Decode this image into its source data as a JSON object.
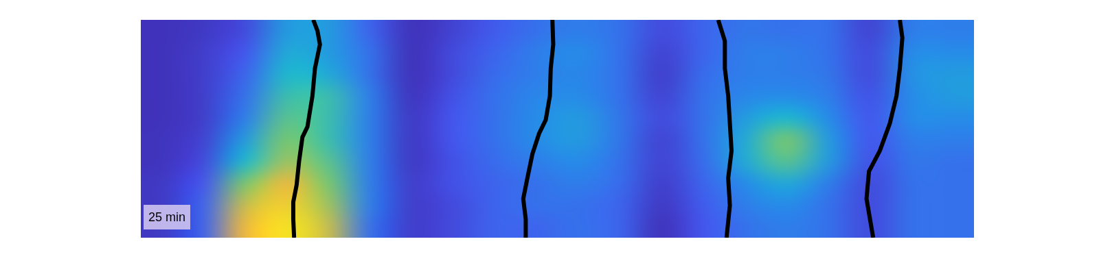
{
  "chart_data": {
    "type": "heatmap",
    "tick_labels": false,
    "xlim": [
      0,
      100
    ],
    "ylim": [
      0,
      100
    ],
    "zlim": [
      0,
      1
    ],
    "z": [
      [
        0.08,
        0.25,
        0.85,
        0.95,
        0.8,
        0.3,
        0.1,
        0.15,
        0.25,
        0.25,
        0.3,
        0.25,
        0.05,
        0.2,
        0.3,
        0.35,
        0.3,
        0.15,
        0.3,
        0.3
      ],
      [
        0.08,
        0.25,
        0.8,
        0.9,
        0.75,
        0.35,
        0.1,
        0.15,
        0.25,
        0.3,
        0.3,
        0.25,
        0.08,
        0.22,
        0.35,
        0.4,
        0.3,
        0.15,
        0.3,
        0.3
      ],
      [
        0.08,
        0.2,
        0.7,
        0.85,
        0.7,
        0.35,
        0.1,
        0.18,
        0.25,
        0.3,
        0.35,
        0.28,
        0.1,
        0.25,
        0.4,
        0.5,
        0.35,
        0.15,
        0.3,
        0.3
      ],
      [
        0.06,
        0.15,
        0.55,
        0.75,
        0.65,
        0.35,
        0.08,
        0.18,
        0.28,
        0.35,
        0.4,
        0.3,
        0.12,
        0.28,
        0.5,
        0.65,
        0.45,
        0.18,
        0.32,
        0.3
      ],
      [
        0.06,
        0.12,
        0.45,
        0.7,
        0.6,
        0.35,
        0.08,
        0.2,
        0.3,
        0.4,
        0.45,
        0.32,
        0.12,
        0.3,
        0.5,
        0.7,
        0.45,
        0.2,
        0.35,
        0.35
      ],
      [
        0.05,
        0.1,
        0.35,
        0.65,
        0.6,
        0.35,
        0.08,
        0.2,
        0.3,
        0.4,
        0.45,
        0.32,
        0.15,
        0.3,
        0.45,
        0.55,
        0.4,
        0.2,
        0.4,
        0.4
      ],
      [
        0.05,
        0.1,
        0.3,
        0.6,
        0.6,
        0.35,
        0.06,
        0.18,
        0.3,
        0.38,
        0.4,
        0.3,
        0.12,
        0.3,
        0.38,
        0.4,
        0.35,
        0.18,
        0.4,
        0.45
      ],
      [
        0.05,
        0.1,
        0.25,
        0.55,
        0.5,
        0.3,
        0.05,
        0.15,
        0.28,
        0.35,
        0.38,
        0.3,
        0.1,
        0.28,
        0.35,
        0.35,
        0.32,
        0.15,
        0.42,
        0.45
      ],
      [
        0.05,
        0.1,
        0.2,
        0.5,
        0.45,
        0.3,
        0.05,
        0.15,
        0.25,
        0.35,
        0.4,
        0.3,
        0.12,
        0.25,
        0.35,
        0.35,
        0.3,
        0.15,
        0.4,
        0.4
      ],
      [
        0.05,
        0.08,
        0.15,
        0.45,
        0.45,
        0.25,
        0.05,
        0.12,
        0.22,
        0.3,
        0.35,
        0.3,
        0.15,
        0.25,
        0.32,
        0.3,
        0.3,
        0.12,
        0.35,
        0.35
      ]
    ],
    "annotations": [
      "25 min"
    ],
    "series": [
      {
        "type": "line",
        "color": "#0b1a6b",
        "x": [
          20.7,
          21.2,
          21.5,
          20.9,
          20.6,
          20.2,
          20.0,
          19.4,
          19.0,
          18.7,
          18.3,
          18.3,
          18.4
        ],
        "values": [
          100,
          95.0,
          88.7,
          77.7,
          65.1,
          55.7,
          50.9,
          46.2,
          35.2,
          24.2,
          16.4,
          8.5,
          0
        ]
      },
      {
        "type": "line",
        "color": "#1a3ad0",
        "x": [
          49.4,
          49.5,
          49.2,
          49.1,
          48.6,
          47.8,
          47.0,
          46.4,
          45.9,
          46.2,
          46.2
        ],
        "values": [
          100,
          88.7,
          77.7,
          65.1,
          54.1,
          47.8,
          38.4,
          27.4,
          17.9,
          8.5,
          0
        ]
      },
      {
        "type": "line",
        "color": "#2fc4c4",
        "x": [
          69.3,
          70.1,
          70.1,
          70.5,
          70.7,
          70.9,
          70.5,
          70.7,
          70.3
        ],
        "values": [
          100,
          90.3,
          77.7,
          65.1,
          52.5,
          39.9,
          27.4,
          14.8,
          0
        ]
      },
      {
        "type": "line",
        "color": "#3ee8c4",
        "x": [
          91.1,
          91.4,
          91.1,
          90.7,
          89.9,
          88.7,
          87.4,
          87.1,
          87.9
        ],
        "values": [
          100,
          91.8,
          77.7,
          65.1,
          52.5,
          39.9,
          30.5,
          17.9,
          0
        ]
      }
    ]
  }
}
